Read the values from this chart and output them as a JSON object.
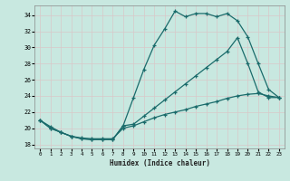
{
  "bg_color": "#c8e8e0",
  "line_color": "#1a6b6b",
  "grid_color": "#b0d8d0",
  "xlabel": "Humidex (Indice chaleur)",
  "ylim": [
    17.5,
    35.2
  ],
  "xlim": [
    -0.5,
    23.5
  ],
  "yticks": [
    18,
    20,
    22,
    24,
    26,
    28,
    30,
    32,
    34
  ],
  "xticks": [
    0,
    1,
    2,
    3,
    4,
    5,
    6,
    7,
    8,
    9,
    10,
    11,
    12,
    13,
    14,
    15,
    16,
    17,
    18,
    19,
    20,
    21,
    22,
    23
  ],
  "line1_x": [
    0,
    1,
    2,
    3,
    4,
    5,
    6,
    7,
    8,
    9,
    10,
    11,
    12,
    13,
    14,
    15,
    16,
    17,
    18,
    19,
    20,
    21,
    22,
    23
  ],
  "line1_y": [
    21.0,
    20.0,
    19.5,
    19.0,
    18.7,
    18.6,
    18.6,
    18.6,
    20.3,
    23.8,
    27.3,
    30.3,
    32.3,
    34.5,
    33.8,
    34.2,
    34.2,
    33.8,
    34.2,
    33.3,
    31.3,
    28.0,
    24.8,
    23.8
  ],
  "line2_x": [
    0,
    1,
    2,
    3,
    4,
    5,
    6,
    7,
    8,
    9,
    10,
    11,
    12,
    13,
    14,
    15,
    16,
    17,
    18,
    19,
    20,
    21,
    22,
    23
  ],
  "line2_y": [
    21.0,
    20.0,
    19.5,
    19.0,
    18.7,
    18.6,
    18.6,
    18.6,
    20.3,
    20.5,
    21.5,
    22.5,
    23.5,
    24.5,
    25.5,
    26.5,
    27.5,
    28.5,
    29.5,
    31.2,
    28.0,
    24.5,
    23.8,
    23.8
  ],
  "line3_x": [
    0,
    1,
    2,
    3,
    4,
    5,
    6,
    7,
    8,
    9,
    10,
    11,
    12,
    13,
    14,
    15,
    16,
    17,
    18,
    19,
    20,
    21,
    22,
    23
  ],
  "line3_y": [
    21.0,
    20.2,
    19.5,
    19.0,
    18.8,
    18.7,
    18.7,
    18.7,
    20.0,
    20.3,
    20.8,
    21.3,
    21.7,
    22.0,
    22.3,
    22.7,
    23.0,
    23.3,
    23.7,
    24.0,
    24.2,
    24.3,
    24.0,
    23.8
  ]
}
